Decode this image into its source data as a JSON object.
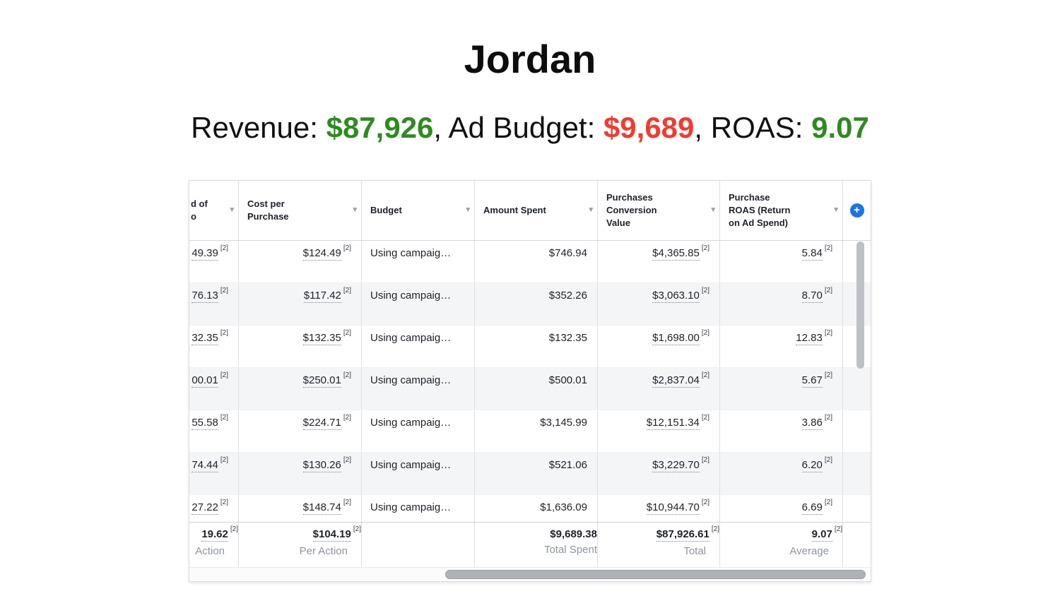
{
  "title": "Jordan",
  "summary": {
    "revenue_label": "Revenue: ",
    "revenue_value": "$87,926",
    "budget_label": ", Ad Budget: ",
    "budget_value": "$9,689",
    "roas_label": ", ROAS: ",
    "roas_value": "9.07",
    "colors": {
      "revenue": "#2e8b1f",
      "budget": "#f23b30",
      "roas": "#2e8b1f"
    }
  },
  "table": {
    "sup_label": "[2]",
    "icons": {
      "add_column": "plus-icon",
      "sort": "chevron-down-icon"
    },
    "columns": {
      "metric": [
        "d of",
        "o"
      ],
      "cost_per_purchase": [
        "Cost per",
        "Purchase"
      ],
      "budget": [
        "Budget"
      ],
      "amount_spent": [
        "Amount Spent"
      ],
      "conversion_value": [
        "Purchases",
        "Conversion",
        "Value"
      ],
      "roas": [
        "Purchase",
        "ROAS (Return",
        "on Ad Spend)"
      ]
    },
    "rows": [
      {
        "metric": "49.39",
        "cost_per_purchase": "$124.49",
        "budget": "Using campaig…",
        "amount_spent": "$746.94",
        "conversion_value": "$4,365.85",
        "roas": "5.84"
      },
      {
        "metric": "76.13",
        "cost_per_purchase": "$117.42",
        "budget": "Using campaig…",
        "amount_spent": "$352.26",
        "conversion_value": "$3,063.10",
        "roas": "8.70"
      },
      {
        "metric": "32.35",
        "cost_per_purchase": "$132.35",
        "budget": "Using campaig…",
        "amount_spent": "$132.35",
        "conversion_value": "$1,698.00",
        "roas": "12.83"
      },
      {
        "metric": "00.01",
        "cost_per_purchase": "$250.01",
        "budget": "Using campaig…",
        "amount_spent": "$500.01",
        "conversion_value": "$2,837.04",
        "roas": "5.67"
      },
      {
        "metric": "55.58",
        "cost_per_purchase": "$224.71",
        "budget": "Using campaig…",
        "amount_spent": "$3,145.99",
        "conversion_value": "$12,151.34",
        "roas": "3.86"
      },
      {
        "metric": "74.44",
        "cost_per_purchase": "$130.26",
        "budget": "Using campaig…",
        "amount_spent": "$521.06",
        "conversion_value": "$3,229.70",
        "roas": "6.20"
      },
      {
        "metric": "27.22",
        "cost_per_purchase": "$148.74",
        "budget": "Using campaig…",
        "amount_spent": "$1,636.09",
        "conversion_value": "$10,944.70",
        "roas": "6.69"
      }
    ],
    "footer": {
      "metric": "19.62",
      "metric_label": "Action",
      "cost_per_purchase": "$104.19",
      "cpp_label": "Per Action",
      "amount_spent": "$9,689.38",
      "amount_label": "Total Spent",
      "conversion_value": "$87,926.61",
      "conv_label": "Total",
      "roas": "9.07",
      "roas_label": "Average"
    }
  }
}
